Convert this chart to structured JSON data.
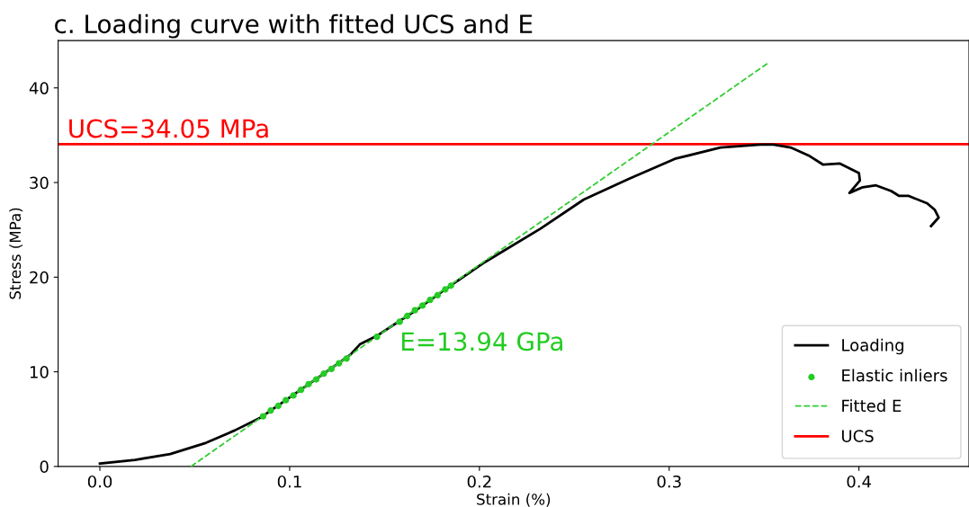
{
  "chart_data": {
    "type": "line",
    "title": "c. Loading curve with fitted UCS and E",
    "xlabel": "Strain (%)",
    "ylabel": "Stress (MPa)",
    "xlim": [
      -0.022,
      0.458
    ],
    "ylim": [
      0,
      45
    ],
    "xticks": [
      {
        "value": 0,
        "label": "0.0"
      },
      0.1,
      0.2,
      0.3,
      0.4
    ],
    "yticks": [
      0,
      10,
      20,
      30,
      40
    ],
    "grid": false,
    "legend": "bottom right",
    "series": [
      {
        "name": "Loading",
        "color": "#000000",
        "line_style": "solid",
        "x": [
          0.0,
          0.0185,
          0.037,
          0.056,
          0.071,
          0.085,
          0.1,
          0.118,
          0.132,
          0.137,
          0.146,
          0.165,
          0.184,
          0.203,
          0.232,
          0.255,
          0.279,
          0.303,
          0.327,
          0.348,
          0.355,
          0.364,
          0.374,
          0.381,
          0.39,
          0.4,
          0.4005,
          0.395,
          0.402,
          0.409,
          0.417,
          0.421,
          0.426,
          0.436,
          0.44,
          0.442,
          0.438
        ],
        "values": [
          0.3,
          0.7,
          1.3,
          2.5,
          3.8,
          5.2,
          7.3,
          9.8,
          11.8,
          12.9,
          13.8,
          16.3,
          19.0,
          21.6,
          25.1,
          28.2,
          30.4,
          32.5,
          33.7,
          34.0,
          34.0,
          33.7,
          32.8,
          31.9,
          32.0,
          31.0,
          30.2,
          28.9,
          29.5,
          29.7,
          29.1,
          28.6,
          28.6,
          27.8,
          27.1,
          26.3,
          25.4
        ]
      },
      {
        "name": "Elastic inliers",
        "type": "scatter",
        "color": "#22cc22",
        "marker": "circle",
        "x": [
          0.086,
          0.09,
          0.094,
          0.098,
          0.102,
          0.106,
          0.11,
          0.114,
          0.118,
          0.122,
          0.126,
          0.13,
          0.146,
          0.158,
          0.162,
          0.166,
          0.17,
          0.174,
          0.178,
          0.182,
          0.185
        ],
        "values": [
          5.3,
          5.9,
          6.4,
          7.0,
          7.5,
          8.1,
          8.7,
          9.2,
          9.8,
          10.3,
          10.9,
          11.4,
          13.7,
          15.3,
          15.9,
          16.5,
          17.0,
          17.6,
          18.1,
          18.7,
          19.1
        ]
      },
      {
        "name": "Fitted E",
        "color": "#33cc33",
        "line_style": "dashed",
        "x": [
          0.048,
          0.3526
        ],
        "values": [
          0,
          42.7
        ]
      }
    ],
    "ref_lines": [
      {
        "axis": "y",
        "value": 34.05,
        "label": "UCS",
        "color": "#ff0000",
        "line_style": "solid"
      }
    ],
    "annotations": [
      "UCS=34.05 MPa",
      "E=13.94 GPa"
    ]
  }
}
